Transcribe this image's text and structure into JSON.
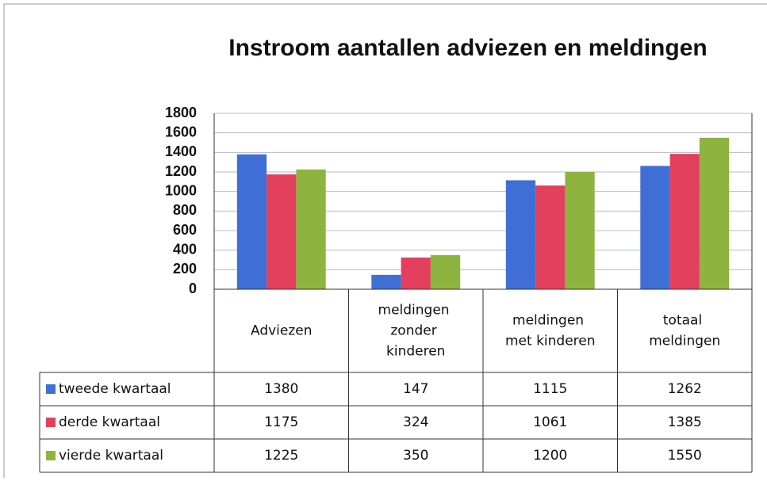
{
  "chart_data": {
    "type": "bar",
    "title": "Instroom aantallen adviezen en meldingen",
    "categories": [
      "Adviezen",
      "meldingen zonder kinderen",
      "meldingen met kinderen",
      "totaal meldingen"
    ],
    "series": [
      {
        "name": "tweede kwartaal",
        "color": "#3f6fd6",
        "values": [
          1380,
          147,
          1115,
          1262
        ]
      },
      {
        "name": "derde kwartaal",
        "color": "#e2405c",
        "values": [
          1175,
          324,
          1061,
          1385
        ]
      },
      {
        "name": "vierde kwartaal",
        "color": "#8db43f",
        "values": [
          1225,
          350,
          1200,
          1550
        ]
      }
    ],
    "ylim": [
      0,
      1800
    ],
    "yticks": [
      0,
      200,
      400,
      600,
      800,
      1000,
      1200,
      1400,
      1600,
      1800
    ],
    "grid": true
  }
}
